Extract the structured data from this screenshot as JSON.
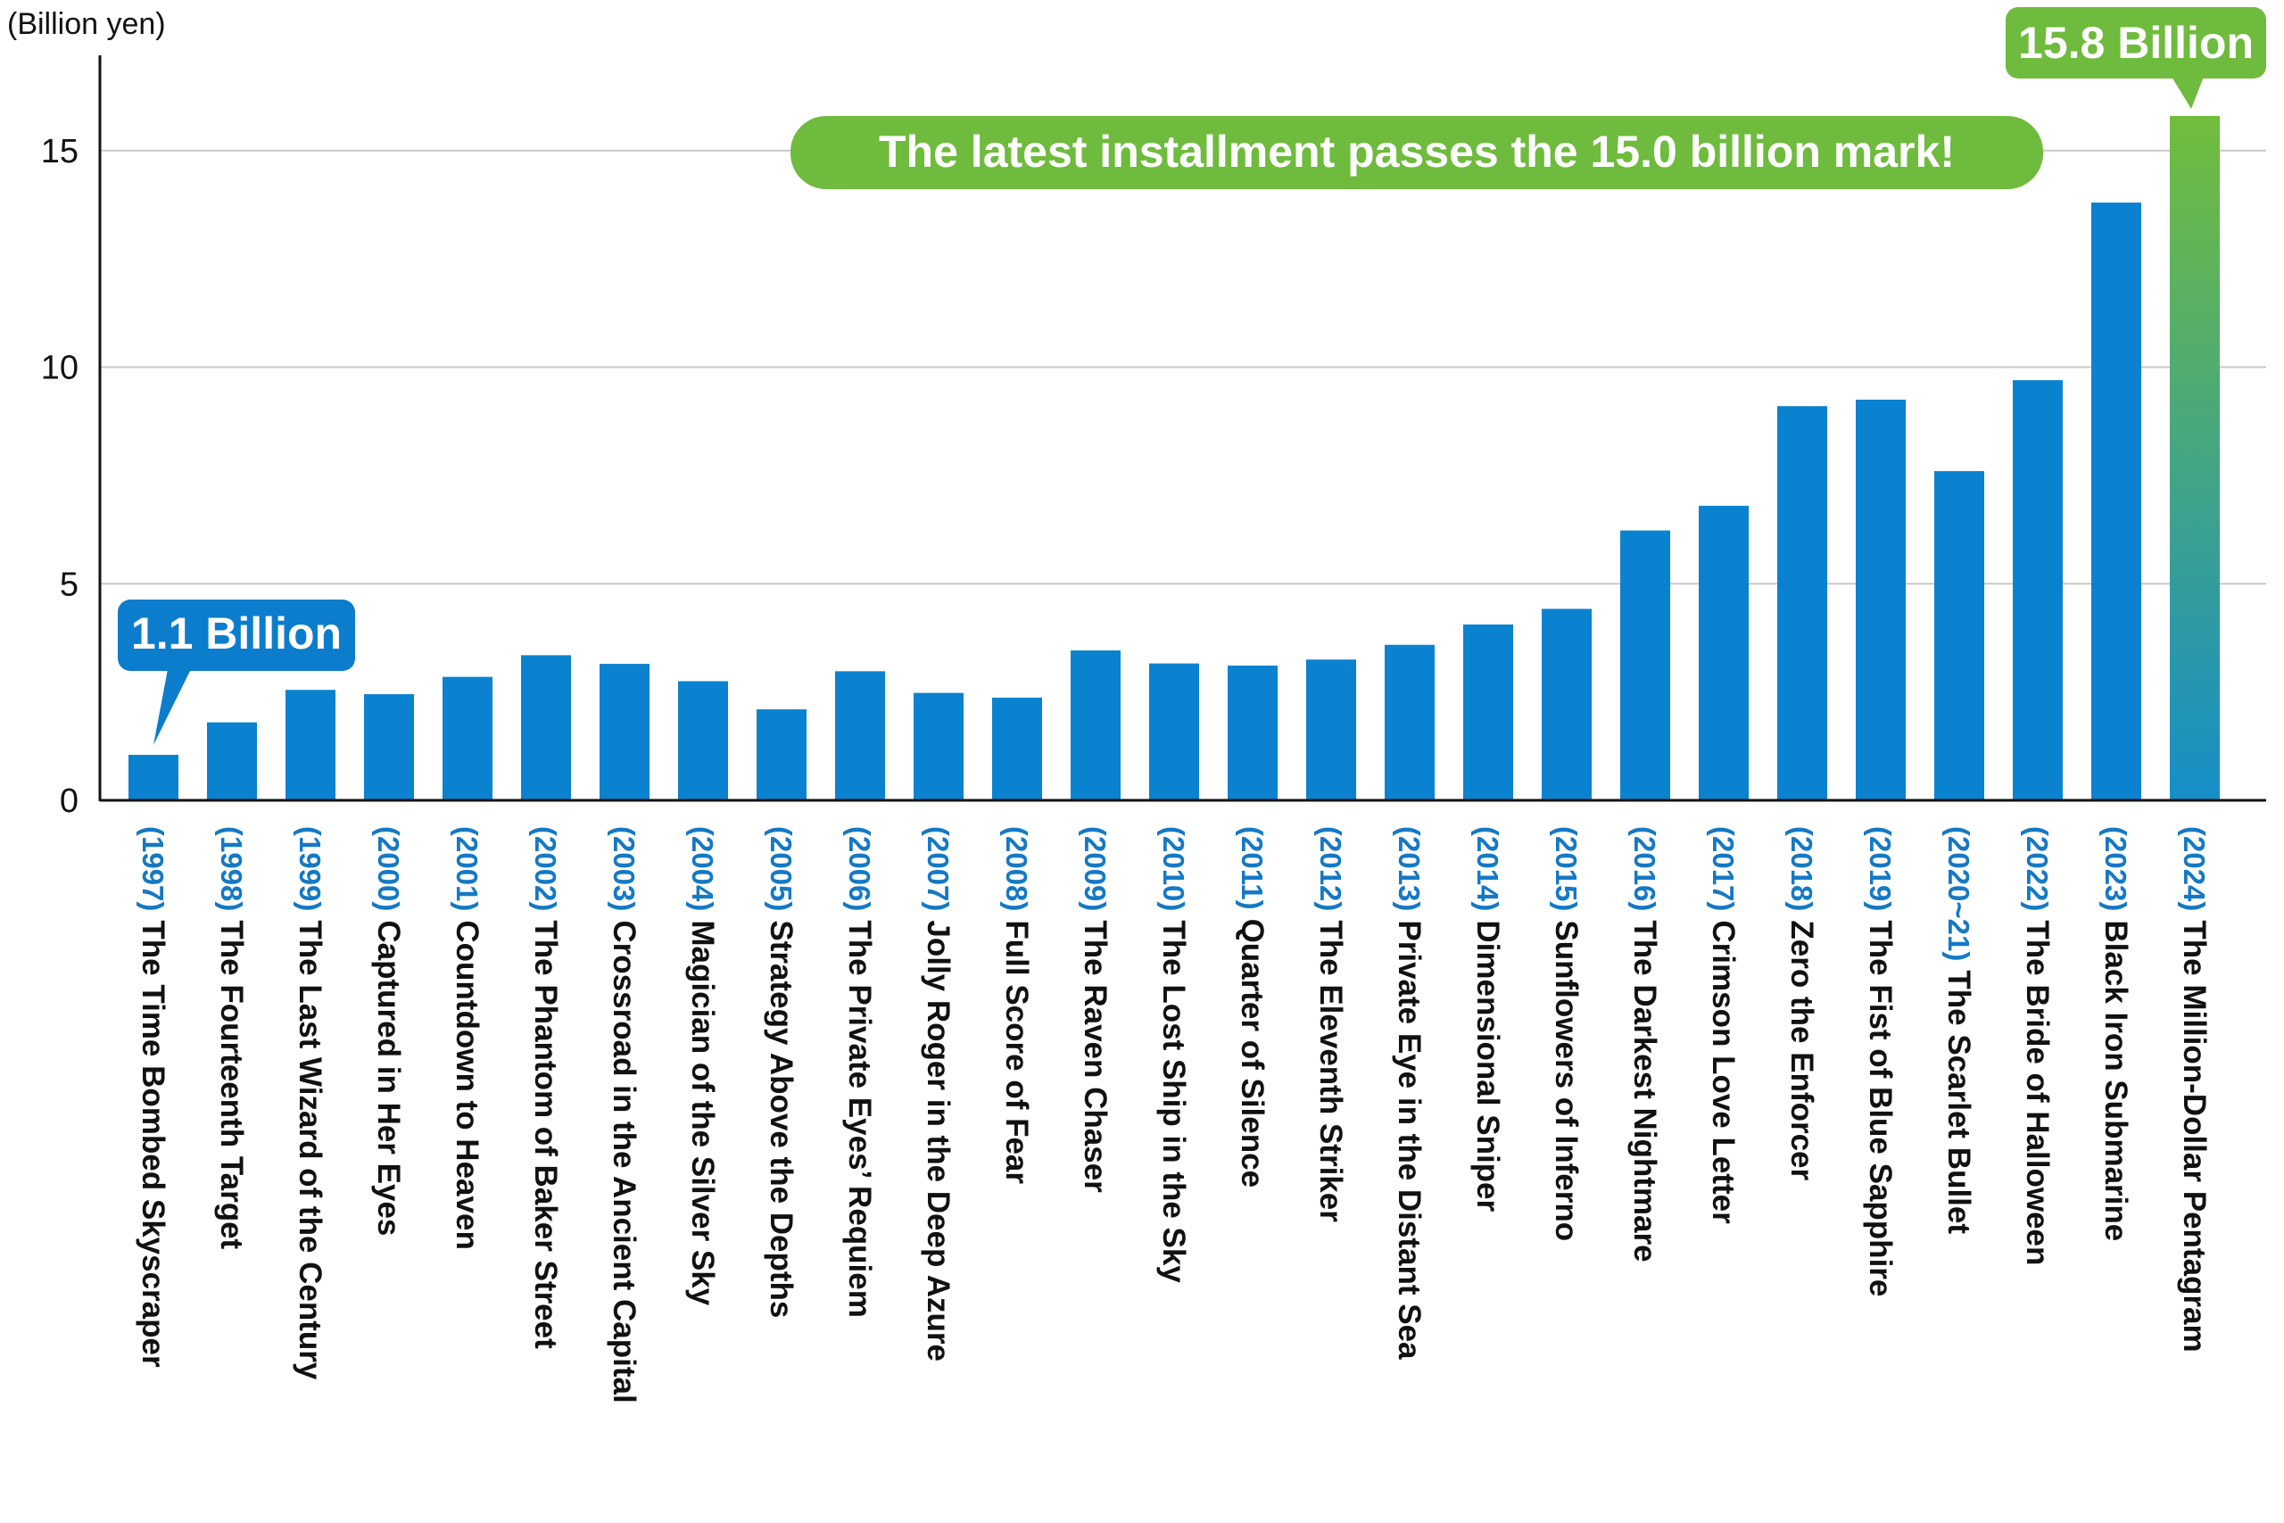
{
  "chart_data": {
    "type": "bar",
    "unit_label": "(Billion yen)",
    "ylim": [
      0,
      17.2
    ],
    "yticks": [
      0,
      5,
      10,
      15
    ],
    "grid": true,
    "categories": [
      {
        "year": "(1997)",
        "title": "The Time Bombed Skyscraper"
      },
      {
        "year": "(1998)",
        "title": "The Fourteenth Target"
      },
      {
        "year": "(1999)",
        "title": "The Last Wizard of the Century"
      },
      {
        "year": "(2000)",
        "title": "Captured in Her Eyes"
      },
      {
        "year": "(2001)",
        "title": "Countdown to Heaven"
      },
      {
        "year": "(2002)",
        "title": "The Phantom of Baker Street"
      },
      {
        "year": "(2003)",
        "title": "Crossroad in the Ancient Capital"
      },
      {
        "year": "(2004)",
        "title": "Magician of the Silver Sky"
      },
      {
        "year": "(2005)",
        "title": "Strategy Above the Depths"
      },
      {
        "year": "(2006)",
        "title": "The Private Eyes’ Requiem"
      },
      {
        "year": "(2007)",
        "title": "Jolly Roger in the Deep Azure"
      },
      {
        "year": "(2008)",
        "title": "Full Score of Fear"
      },
      {
        "year": "(2009)",
        "title": "The Raven Chaser"
      },
      {
        "year": "(2010)",
        "title": "The Lost Ship in the Sky"
      },
      {
        "year": "(2011)",
        "title": "Quarter of Silence"
      },
      {
        "year": "(2012)",
        "title": "The Eleventh Striker"
      },
      {
        "year": "(2013)",
        "title": "Private Eye in the Distant Sea"
      },
      {
        "year": "(2014)",
        "title": "Dimensional Sniper"
      },
      {
        "year": "(2015)",
        "title": "Sunflowers of Inferno"
      },
      {
        "year": "(2016)",
        "title": "The Darkest Nightmare"
      },
      {
        "year": "(2017)",
        "title": "Crimson Love Letter"
      },
      {
        "year": "(2018)",
        "title": "Zero the Enforcer"
      },
      {
        "year": "(2019)",
        "title": "The Fist of Blue Sapphire"
      },
      {
        "year": "(2020~21)",
        "title": "The Scarlet Bullet"
      },
      {
        "year": "(2022)",
        "title": "The Bride of Halloween"
      },
      {
        "year": "(2023)",
        "title": "Black Iron Submarine"
      },
      {
        "year": "(2024)",
        "title": "The Million-Dollar Pentagram"
      }
    ],
    "values": [
      1.05,
      1.8,
      2.55,
      2.45,
      2.85,
      3.35,
      3.15,
      2.75,
      2.1,
      2.98,
      2.48,
      2.37,
      3.46,
      3.16,
      3.11,
      3.25,
      3.59,
      4.06,
      4.42,
      6.23,
      6.8,
      9.1,
      9.25,
      7.6,
      9.7,
      13.8,
      15.8
    ],
    "annotations": {
      "first": {
        "text": "1.1 Billion"
      },
      "last": {
        "text": "15.8 Billion"
      },
      "headline": {
        "text": "The latest installment passes the 15.0 billion mark!"
      }
    },
    "colors": {
      "bar": "#0b82cf",
      "highlight_top": "#72bd3c",
      "highlight_bottom": "#168ec8",
      "callout_blue": "#0b7dcc",
      "callout_green": "#6fbb3d",
      "grid": "#c8c8c8",
      "axis": "#111111"
    }
  }
}
